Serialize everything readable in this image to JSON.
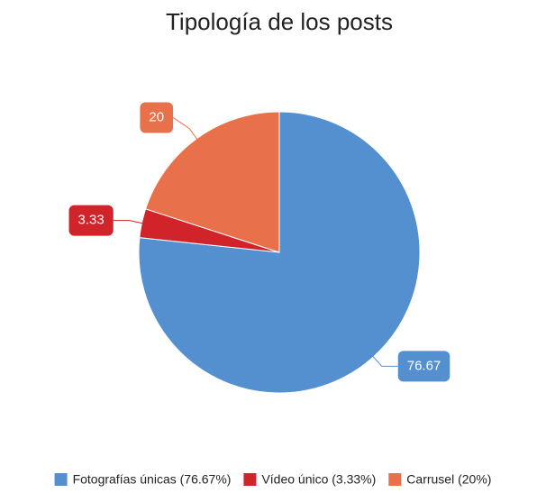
{
  "chart_data": {
    "type": "pie",
    "title": "Tipología de los posts",
    "categories": [
      "Fotografías únicas (76.67%)",
      "Vídeo único (3.33%)",
      "Carrusel (20%)"
    ],
    "values": [
      76.67,
      3.33,
      20
    ],
    "colors": [
      "#5490cf",
      "#d0232a",
      "#e8704a"
    ],
    "legend": "bottom"
  }
}
